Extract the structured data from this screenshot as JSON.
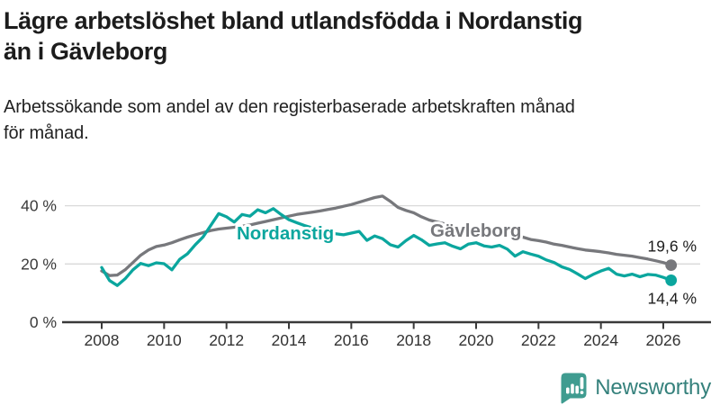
{
  "title_lines": [
    "Lägre arbetslöshet bland utlandsfödda i Nordanstig",
    "än i Gävleborg"
  ],
  "subtitle_lines": [
    "Arbetssökande som andel av den registerbaserade arbetskraften månad",
    "för månad."
  ],
  "branding": {
    "logo_label": "Newsworthy",
    "logo_icon": "newsworthy-speech-bubble-bars-icon",
    "text_color": "#35817c",
    "icon_color": "#3f9c90"
  },
  "chart_data": {
    "type": "line",
    "title": "Lägre arbetslöshet bland utlandsfödda i Nordanstig än i Gävleborg",
    "subtitle": "Arbetssökande som andel av den registerbaserade arbetskraften månad för månad.",
    "unit": "%",
    "grid": "horizontal",
    "ylim": [
      0,
      46
    ],
    "xlim": [
      2007.9,
      2027.3
    ],
    "yticks": [
      {
        "value": 40,
        "label": "40 %",
        "gridline": true
      },
      {
        "value": 20,
        "label": "20 %",
        "gridline": true
      },
      {
        "value": 0,
        "label": "0 %",
        "gridline": false
      }
    ],
    "xticks": [
      {
        "value": 2008,
        "label": "2008"
      },
      {
        "value": 2010,
        "label": "2010"
      },
      {
        "value": 2012,
        "label": "2012"
      },
      {
        "value": 2014,
        "label": "2014"
      },
      {
        "value": 2016,
        "label": "2016"
      },
      {
        "value": 2018,
        "label": "2018"
      },
      {
        "value": 2020,
        "label": "2020"
      },
      {
        "value": 2022,
        "label": "2022"
      },
      {
        "value": 2024,
        "label": "2024"
      },
      {
        "value": 2026,
        "label": "2026"
      }
    ],
    "x": [
      2008.0,
      2008.25,
      2008.5,
      2008.75,
      2009.0,
      2009.25,
      2009.5,
      2009.75,
      2010.0,
      2010.25,
      2010.5,
      2010.75,
      2011.0,
      2011.25,
      2011.5,
      2011.75,
      2012.0,
      2012.25,
      2012.5,
      2012.75,
      2013.0,
      2013.25,
      2013.5,
      2013.75,
      2014.0,
      2014.25,
      2014.5,
      2014.75,
      2015.0,
      2015.25,
      2015.5,
      2015.75,
      2016.0,
      2016.25,
      2016.5,
      2016.75,
      2017.0,
      2017.25,
      2017.5,
      2017.75,
      2018.0,
      2018.25,
      2018.5,
      2018.75,
      2019.0,
      2019.25,
      2019.5,
      2019.75,
      2020.0,
      2020.25,
      2020.5,
      2020.75,
      2021.0,
      2021.25,
      2021.5,
      2021.75,
      2022.0,
      2022.25,
      2022.5,
      2022.75,
      2023.0,
      2023.25,
      2023.5,
      2023.75,
      2024.0,
      2024.25,
      2024.5,
      2024.75,
      2025.0,
      2025.25,
      2025.5,
      2025.75,
      2026.0,
      2026.25
    ],
    "series": [
      {
        "name": "Gävleborg",
        "color": "#77787c",
        "end_value": 19.6,
        "end_label": "19,6 %",
        "end_label_side": "above",
        "values": [
          17.6,
          16.0,
          16.2,
          18.0,
          20.5,
          23.0,
          24.8,
          26.0,
          26.5,
          27.3,
          28.3,
          29.2,
          30.0,
          30.8,
          31.5,
          32.0,
          32.3,
          32.6,
          33.0,
          33.4,
          34.0,
          34.6,
          35.2,
          35.8,
          36.4,
          37.0,
          37.4,
          37.8,
          38.2,
          38.7,
          39.2,
          39.8,
          40.4,
          41.2,
          42.0,
          42.8,
          43.3,
          41.5,
          39.4,
          38.4,
          37.6,
          36.2,
          35.1,
          34.4,
          33.8,
          33.2,
          32.6,
          32.2,
          32.6,
          33.0,
          32.4,
          31.6,
          30.8,
          30.0,
          29.2,
          28.4,
          28.0,
          27.5,
          26.8,
          26.4,
          25.8,
          25.3,
          24.8,
          24.5,
          24.2,
          23.8,
          23.3,
          23.0,
          22.7,
          22.2,
          21.7,
          21.1,
          20.5,
          19.6
        ]
      },
      {
        "name": "Nordanstig",
        "color": "#0ba69e",
        "end_value": 14.4,
        "end_label": "14,4 %",
        "end_label_side": "below",
        "values": [
          18.8,
          14.3,
          12.6,
          14.9,
          18.0,
          20.2,
          19.4,
          20.4,
          20.1,
          18.0,
          21.6,
          23.5,
          26.6,
          29.3,
          33.3,
          37.3,
          36.2,
          34.4,
          37.0,
          36.4,
          38.6,
          37.6,
          39.0,
          37.0,
          35.2,
          34.2,
          33.2,
          32.4,
          31.6,
          31.0,
          30.4,
          30.0,
          30.6,
          31.2,
          28.1,
          29.6,
          28.7,
          26.6,
          25.8,
          28.0,
          29.8,
          28.3,
          26.4,
          26.9,
          27.3,
          26.1,
          25.2,
          26.8,
          27.3,
          26.2,
          25.8,
          26.4,
          25.1,
          22.7,
          24.2,
          23.4,
          22.7,
          21.4,
          20.5,
          19.0,
          18.1,
          16.6,
          15.0,
          16.4,
          17.6,
          18.5,
          16.5,
          15.9,
          16.5,
          15.6,
          16.4,
          16.2,
          15.4,
          14.4
        ]
      }
    ],
    "legend_position": "inline-labels"
  }
}
